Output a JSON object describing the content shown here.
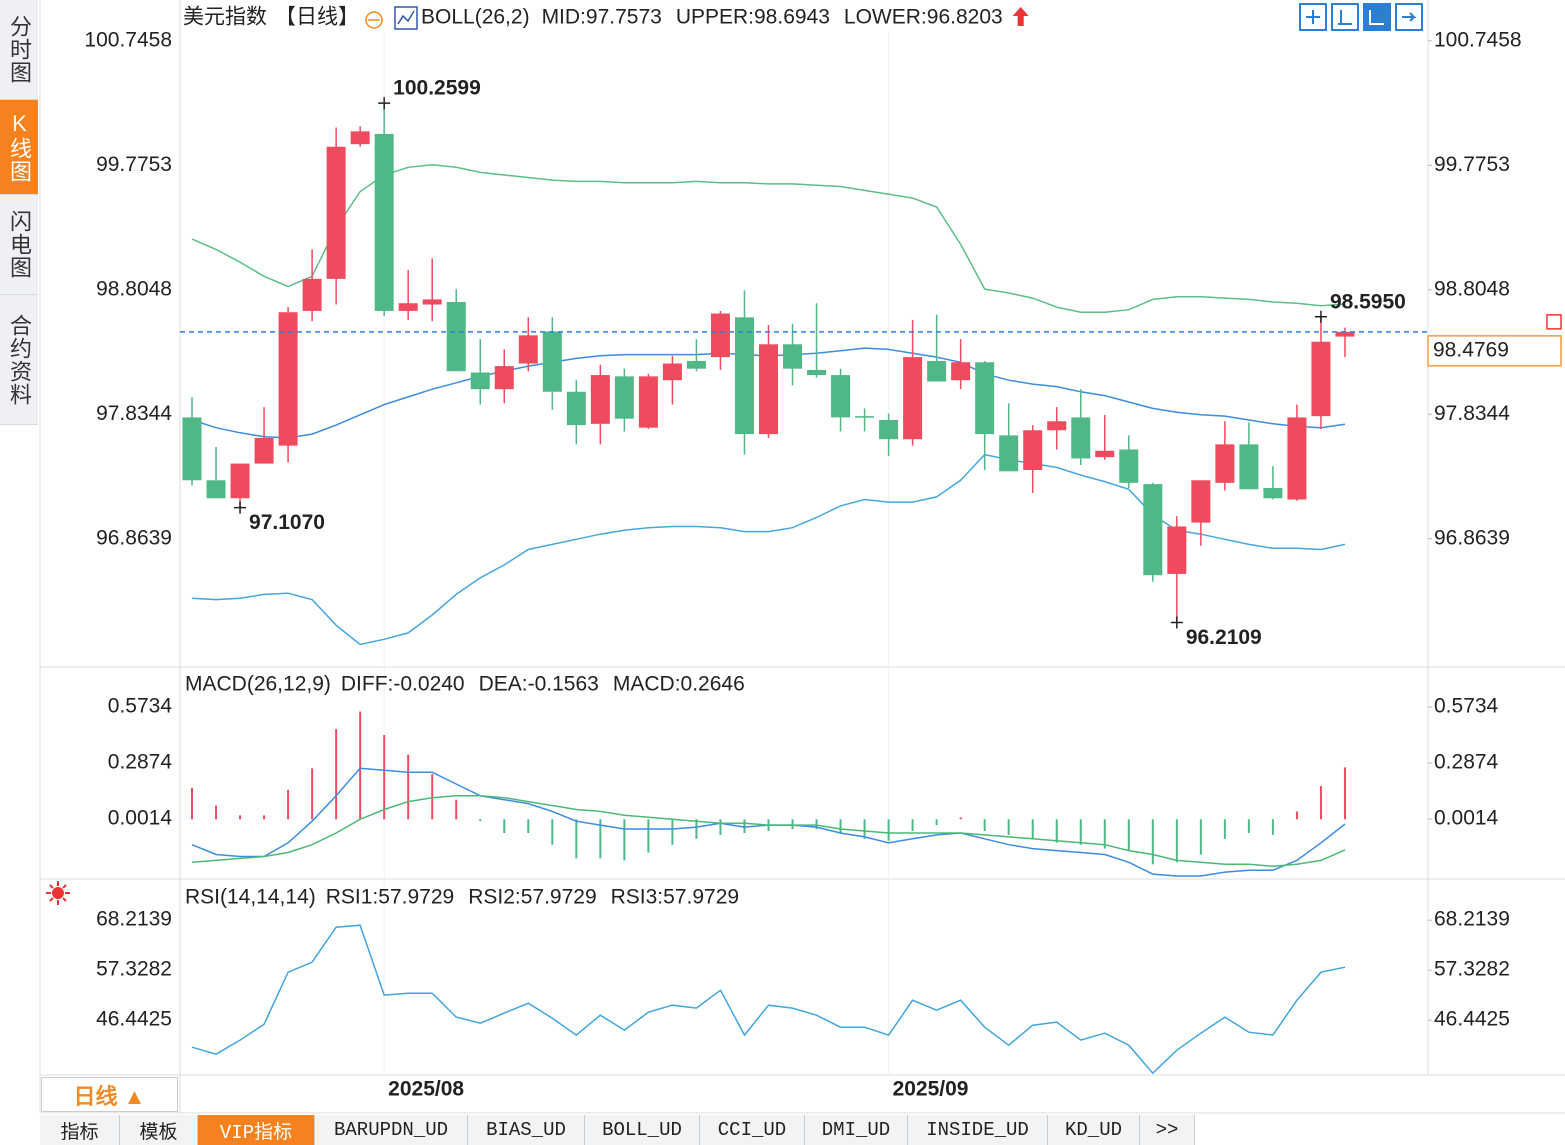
{
  "sidebar": {
    "tabs": [
      "分时图",
      "K线图",
      "闪电图",
      "合约资料"
    ],
    "active": 1
  },
  "chart_data": [
    {
      "type": "candlestick",
      "title": "美元指数",
      "period": "【日线】",
      "indicator": "BOLL(26,2)",
      "legend": [
        {
          "label": "MID:97.7573",
          "color": "#4c9ee9"
        },
        {
          "label": "UPPER:98.6943",
          "color": "#63c48d"
        },
        {
          "label": "LOWER:96.8203",
          "color": "#5aaeea"
        }
      ],
      "categories": [
        null,
        null,
        null,
        null,
        null,
        null,
        null,
        null,
        "2025/08",
        null,
        null,
        null,
        null,
        null,
        null,
        null,
        null,
        null,
        null,
        null,
        null,
        null,
        null,
        null,
        null,
        null,
        null,
        null,
        null,
        "2025/09",
        null,
        null,
        null,
        null,
        null,
        null,
        null,
        null,
        null,
        null,
        null,
        null,
        null,
        null,
        null,
        null,
        null,
        null,
        null
      ],
      "open": [
        97.81,
        97.32,
        97.18,
        97.45,
        97.59,
        98.64,
        98.89,
        99.94,
        100.02,
        98.64,
        98.69,
        98.71,
        98.16,
        98.03,
        98.23,
        98.48,
        98.01,
        97.76,
        98.13,
        97.73,
        98.1,
        98.25,
        98.28,
        98.59,
        97.68,
        98.38,
        98.18,
        98.14,
        97.82,
        97.79,
        97.64,
        98.25,
        98.1,
        98.24,
        97.67,
        97.4,
        97.71,
        97.81,
        97.5,
        97.56,
        97.29,
        96.59,
        96.99,
        97.3,
        97.6,
        97.26,
        97.17,
        97.82,
        98.44
      ],
      "high": [
        97.97,
        97.58,
        97.45,
        97.89,
        98.67,
        99.12,
        100.07,
        100.08,
        100.2599,
        98.96,
        99.05,
        98.81,
        98.42,
        98.34,
        98.59,
        98.59,
        98.1,
        98.22,
        98.19,
        98.15,
        98.29,
        98.42,
        98.64,
        98.8,
        98.53,
        98.54,
        98.7,
        98.19,
        97.88,
        97.84,
        98.57,
        98.61,
        98.42,
        98.25,
        97.92,
        97.75,
        97.89,
        98.03,
        97.83,
        97.67,
        97.3,
        97.04,
        97.31,
        97.78,
        97.77,
        97.43,
        97.91,
        98.595,
        98.51
      ],
      "low": [
        97.28,
        97.18,
        97.107,
        97.45,
        97.46,
        98.56,
        98.69,
        99.92,
        98.6,
        98.57,
        98.56,
        98.17,
        97.91,
        97.92,
        98.17,
        97.87,
        97.6,
        97.6,
        97.7,
        97.72,
        97.91,
        98.17,
        98.18,
        97.52,
        97.65,
        98.06,
        98.12,
        97.7,
        97.7,
        97.51,
        97.59,
        98.09,
        98.03,
        97.4,
        97.39,
        97.22,
        97.56,
        97.44,
        97.48,
        97.26,
        96.53,
        96.2109,
        96.81,
        97.24,
        97.25,
        97.17,
        97.16,
        97.72,
        98.28
      ],
      "close": [
        97.32,
        97.18,
        97.45,
        97.65,
        98.63,
        98.89,
        99.92,
        100.04,
        98.64,
        98.7,
        98.73,
        98.17,
        98.03,
        98.21,
        98.45,
        98.01,
        97.75,
        98.14,
        97.8,
        98.13,
        98.23,
        98.19,
        98.62,
        97.68,
        98.38,
        98.19,
        98.14,
        97.81,
        97.81,
        97.64,
        98.28,
        98.09,
        98.24,
        97.68,
        97.39,
        97.71,
        97.78,
        97.49,
        97.55,
        97.3,
        96.58,
        96.96,
        97.32,
        97.6,
        97.25,
        97.18,
        97.81,
        98.4,
        98.4769
      ],
      "up_color": "#ee4b5f",
      "down_color": "#4fb886",
      "bands": [
        {
          "color": "#3b8ce3",
          "values": [
            97.79,
            97.73,
            97.69,
            97.66,
            97.65,
            97.68,
            97.75,
            97.83,
            97.91,
            97.97,
            98.03,
            98.08,
            98.13,
            98.17,
            98.21,
            98.24,
            98.27,
            98.29,
            98.3,
            98.3,
            98.3,
            98.3,
            98.31,
            98.3,
            98.29,
            98.3,
            98.31,
            98.33,
            98.35,
            98.34,
            98.31,
            98.28,
            98.24,
            98.15,
            98.1,
            98.07,
            98.05,
            98.01,
            97.98,
            97.93,
            97.88,
            97.85,
            97.83,
            97.82,
            97.79,
            97.76,
            97.74,
            97.73,
            97.7573
          ]
        },
        {
          "color": "#5bbf86",
          "values": [
            99.2,
            99.12,
            99.02,
            98.91,
            98.83,
            98.91,
            99.29,
            99.57,
            99.7,
            99.76,
            99.78,
            99.76,
            99.72,
            99.7,
            99.68,
            99.66,
            99.65,
            99.65,
            99.64,
            99.64,
            99.64,
            99.65,
            99.64,
            99.64,
            99.63,
            99.63,
            99.62,
            99.61,
            99.58,
            99.55,
            99.52,
            99.45,
            99.16,
            98.81,
            98.78,
            98.74,
            98.67,
            98.63,
            98.63,
            98.65,
            98.73,
            98.75,
            98.75,
            98.74,
            98.73,
            98.71,
            98.7,
            98.68,
            98.6943
          ]
        },
        {
          "color": "#45a7e0",
          "values": [
            96.4,
            96.39,
            96.4,
            96.43,
            96.44,
            96.39,
            96.19,
            96.04,
            96.08,
            96.13,
            96.27,
            96.43,
            96.56,
            96.66,
            96.78,
            96.82,
            96.86,
            96.9,
            96.93,
            96.95,
            96.96,
            96.96,
            96.95,
            96.92,
            96.92,
            96.95,
            97.03,
            97.12,
            97.17,
            97.15,
            97.15,
            97.19,
            97.32,
            97.52,
            97.48,
            97.45,
            97.42,
            97.36,
            97.31,
            97.25,
            97.05,
            96.93,
            96.9,
            96.86,
            96.82,
            96.79,
            96.79,
            96.78,
            96.8203
          ]
        }
      ],
      "annotations": [
        {
          "value": 100.2599,
          "label": "100.2599"
        },
        {
          "value": 97.107,
          "label": "97.1070"
        },
        {
          "value": 96.2109,
          "label": "96.2109"
        },
        {
          "value": 98.595,
          "label": "98.5950"
        }
      ],
      "last_price": {
        "value": 98.4769,
        "label": "98.4769",
        "color": "#f39a3a"
      },
      "ylim": [
        95.88,
        100.83
      ],
      "yticks": [
        96.8639,
        97.8344,
        98.8048,
        99.7753,
        100.7458
      ]
    },
    {
      "type": "macd",
      "title": "MACD(26,12,9)",
      "legend": [
        {
          "label": "DIFF:-0.0240",
          "color": "#4c9ee9"
        },
        {
          "label": "DEA:-0.1563",
          "color": "#63c48d"
        },
        {
          "label": "MACD:0.2646",
          "color": "#5aaeea"
        }
      ],
      "values": [
        0.16,
        0.07,
        0.02,
        0.02,
        0.15,
        0.26,
        0.46,
        0.55,
        0.43,
        0.33,
        0.23,
        0.1,
        -0.01,
        -0.07,
        -0.07,
        -0.13,
        -0.2,
        -0.2,
        -0.21,
        -0.17,
        -0.13,
        -0.1,
        -0.08,
        -0.07,
        -0.06,
        -0.05,
        -0.05,
        -0.07,
        -0.1,
        -0.11,
        -0.06,
        -0.03,
        0.01,
        -0.06,
        -0.08,
        -0.1,
        -0.12,
        -0.13,
        -0.15,
        -0.16,
        -0.23,
        -0.22,
        -0.18,
        -0.1,
        -0.07,
        -0.08,
        0.04,
        0.17,
        0.2646
      ],
      "up_color": "#ee4b5f",
      "down_color": "#4fb886",
      "lines": [
        {
          "color": "#3b8ce3",
          "values": [
            -0.13,
            -0.18,
            -0.19,
            -0.19,
            -0.12,
            -0.01,
            0.12,
            0.26,
            0.25,
            0.24,
            0.24,
            0.18,
            0.12,
            0.1,
            0.08,
            0.04,
            -0.01,
            -0.03,
            -0.05,
            -0.05,
            -0.05,
            -0.04,
            -0.02,
            -0.04,
            -0.03,
            -0.03,
            -0.04,
            -0.07,
            -0.09,
            -0.12,
            -0.1,
            -0.08,
            -0.07,
            -0.1,
            -0.13,
            -0.15,
            -0.16,
            -0.17,
            -0.18,
            -0.22,
            -0.28,
            -0.29,
            -0.29,
            -0.27,
            -0.26,
            -0.26,
            -0.21,
            -0.12,
            -0.024
          ]
        },
        {
          "color": "#4cb873",
          "values": [
            -0.22,
            -0.21,
            -0.2,
            -0.19,
            -0.17,
            -0.13,
            -0.07,
            0.0,
            0.05,
            0.09,
            0.11,
            0.12,
            0.12,
            0.11,
            0.09,
            0.07,
            0.05,
            0.04,
            0.02,
            0.01,
            0.0,
            -0.01,
            -0.02,
            -0.02,
            -0.03,
            -0.03,
            -0.03,
            -0.05,
            -0.06,
            -0.07,
            -0.07,
            -0.07,
            -0.07,
            -0.08,
            -0.09,
            -0.1,
            -0.11,
            -0.12,
            -0.13,
            -0.16,
            -0.18,
            -0.21,
            -0.22,
            -0.23,
            -0.23,
            -0.24,
            -0.23,
            -0.21,
            -0.1563
          ]
        }
      ],
      "ylim": [
        -0.3,
        0.66
      ],
      "yticks": [
        0.0014,
        0.2874,
        0.5734
      ]
    },
    {
      "type": "line",
      "title": "RSI(14,14,14)",
      "legend": [
        {
          "label": "RSI1:57.9729",
          "color": "#4c9ee9"
        },
        {
          "label": "RSI2:57.9729",
          "color": "#63c48d"
        },
        {
          "label": "RSI3:57.9729",
          "color": "#5aaeea"
        }
      ],
      "values": [
        40.56,
        39.04,
        42.09,
        45.57,
        56.89,
        59.07,
        66.69,
        67.13,
        51.89,
        52.32,
        52.32,
        47.1,
        45.79,
        47.97,
        50.14,
        46.88,
        43.18,
        47.53,
        44.27,
        48.18,
        49.71,
        49.06,
        52.97,
        43.18,
        49.71,
        49.06,
        47.53,
        44.92,
        44.92,
        43.18,
        50.8,
        48.62,
        50.8,
        44.92,
        41.0,
        45.35,
        46.01,
        42.09,
        43.61,
        41.0,
        34.9,
        39.91,
        43.61,
        47.1,
        43.83,
        43.18,
        50.8,
        56.89,
        57.9729
      ],
      "color": "#3fa6de",
      "ylim": [
        34.5,
        73.7
      ],
      "yticks": [
        46.4425,
        57.3282,
        68.2139
      ]
    }
  ],
  "footer": {
    "period": "日线 ▲",
    "tabs": [
      "指标",
      "模板",
      "VIP指标",
      "BARUPDN_UD",
      "BIAS_UD",
      "BOLL_UD",
      "CCI_UD",
      "DMI_UD",
      "INSIDE_UD",
      "KD_UD",
      ">>"
    ],
    "active_tab": 2
  }
}
